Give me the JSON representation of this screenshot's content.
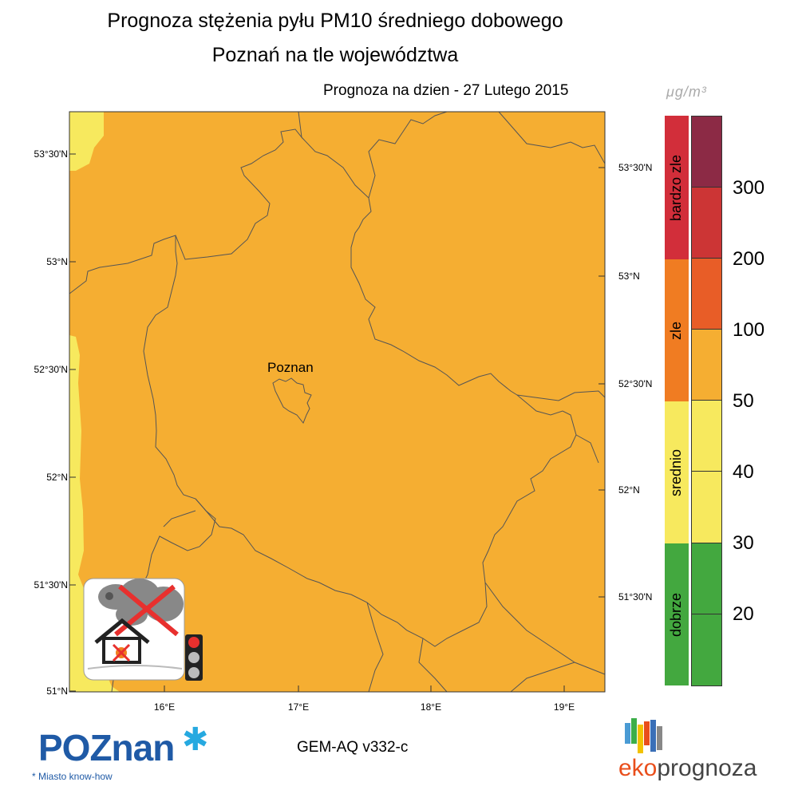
{
  "header": {
    "title_line1": "Prognoza stężenia pyłu PM10 średniego dobowego",
    "title_line2": "Poznań na tle województwa",
    "forecast_date": "Prognoza na dzien -  27 Lutego 2015"
  },
  "map": {
    "city_label": "Poznan",
    "lat_labels_left": [
      "53°30'N",
      "53°N",
      "52°30'N",
      "52°N",
      "51°30'N",
      "51°N"
    ],
    "lat_labels_right": [
      "53°30'N",
      "53°N",
      "52°30'N",
      "52°N",
      "51°30'N"
    ],
    "lon_labels": [
      "16°E",
      "17°E",
      "18°E",
      "19°E"
    ],
    "background_color": "#f5ae32",
    "edge_color": "#f7e95e"
  },
  "legend": {
    "unit": "μg/m³",
    "categories": [
      {
        "label": "bardzo zle",
        "color": "#d22e3a"
      },
      {
        "label": "zle",
        "color": "#f07c22"
      },
      {
        "label": "srednio",
        "color": "#f7e95e"
      },
      {
        "label": "dobrze",
        "color": "#43a83f"
      }
    ],
    "scale_colors": [
      "#8c2a45",
      "#cc3535",
      "#e85d27",
      "#f5ae32",
      "#f7e95e",
      "#f7e95e",
      "#43a83f",
      "#43a83f"
    ],
    "tick_labels": [
      "300",
      "200",
      "100",
      "50",
      "40",
      "30",
      "20"
    ]
  },
  "footer": {
    "model": "GEM-AQ v332-c",
    "poznan_logo": "POZnan",
    "poznan_slogan": "* Miasto know-how",
    "eko_part1": "eko",
    "eko_part2": "prognoza"
  }
}
